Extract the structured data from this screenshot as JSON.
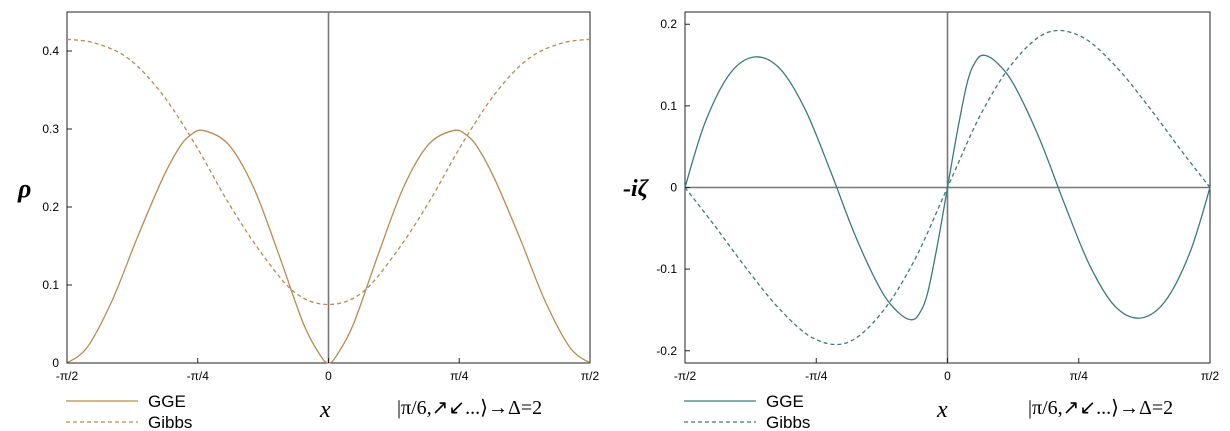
{
  "chart_data": [
    {
      "type": "line",
      "ylabel": "ρ",
      "xlabel": "x",
      "xlim": [
        -1.5708,
        1.5708
      ],
      "ylim": [
        0,
        0.45
      ],
      "color": "#b98a52",
      "x_ticks": [
        {
          "value": -1.5708,
          "label": "-π/2"
        },
        {
          "value": -0.7854,
          "label": "-π/4"
        },
        {
          "value": 0,
          "label": "0"
        },
        {
          "value": 0.7854,
          "label": "π/4"
        },
        {
          "value": 1.5708,
          "label": "π/2"
        }
      ],
      "y_ticks": [
        {
          "value": 0,
          "label": "0"
        },
        {
          "value": 0.1,
          "label": "0.1"
        },
        {
          "value": 0.2,
          "label": "0.2"
        },
        {
          "value": 0.3,
          "label": "0.3"
        },
        {
          "value": 0.4,
          "label": "0.4"
        }
      ],
      "annotation": "|π/6,↗↙...⟩→Δ=2",
      "series": [
        {
          "name": "GGE",
          "style": "solid",
          "x": [
            -1.5708,
            -1.45,
            -1.3,
            -1.15,
            -1.0,
            -0.9,
            -0.83,
            -0.75,
            -0.6,
            -0.45,
            -0.3,
            -0.15,
            -0.05,
            0,
            0.05,
            0.15,
            0.3,
            0.45,
            0.6,
            0.75,
            0.83,
            0.9,
            1.0,
            1.15,
            1.3,
            1.45,
            1.5708
          ],
          "y": [
            0.0,
            0.02,
            0.08,
            0.16,
            0.235,
            0.275,
            0.292,
            0.298,
            0.28,
            0.225,
            0.14,
            0.05,
            0.01,
            0.0,
            0.01,
            0.05,
            0.14,
            0.225,
            0.28,
            0.298,
            0.292,
            0.275,
            0.235,
            0.16,
            0.08,
            0.02,
            0.0
          ]
        },
        {
          "name": "Gibbs",
          "style": "dashed",
          "x": [
            -1.5708,
            -1.4,
            -1.2,
            -1.0,
            -0.8,
            -0.6,
            -0.4,
            -0.2,
            0,
            0.2,
            0.4,
            0.6,
            0.8,
            1.0,
            1.2,
            1.4,
            1.5708
          ],
          "y": [
            0.415,
            0.41,
            0.39,
            0.345,
            0.28,
            0.205,
            0.14,
            0.09,
            0.075,
            0.09,
            0.14,
            0.205,
            0.28,
            0.345,
            0.39,
            0.41,
            0.415
          ]
        }
      ]
    },
    {
      "type": "line",
      "ylabel": "-iζ",
      "xlabel": "x",
      "xlim": [
        -1.5708,
        1.5708
      ],
      "ylim": [
        -0.215,
        0.215
      ],
      "color": "#3c7a78",
      "x_ticks": [
        {
          "value": -1.5708,
          "label": "-π/2"
        },
        {
          "value": -0.7854,
          "label": "-π/4"
        },
        {
          "value": 0,
          "label": "0"
        },
        {
          "value": 0.7854,
          "label": "π/4"
        },
        {
          "value": 1.5708,
          "label": "π/2"
        }
      ],
      "y_ticks": [
        {
          "value": -0.2,
          "label": "-0.2"
        },
        {
          "value": -0.1,
          "label": "-0.1"
        },
        {
          "value": 0,
          "label": "0"
        },
        {
          "value": 0.1,
          "label": "0.1"
        },
        {
          "value": 0.2,
          "label": "0.2"
        }
      ],
      "annotation": "|π/6,↗↙...⟩→Δ=2",
      "series": [
        {
          "name": "GGE",
          "style": "solid",
          "x": [
            -1.5708,
            -1.45,
            -1.3,
            -1.15,
            -1.0,
            -0.85,
            -0.7,
            -0.55,
            -0.4,
            -0.3,
            -0.22,
            -0.17,
            -0.12,
            -0.06,
            0,
            0.06,
            0.12,
            0.17,
            0.22,
            0.3,
            0.4,
            0.55,
            0.7,
            0.85,
            1.0,
            1.15,
            1.3,
            1.45,
            1.5708
          ],
          "y": [
            0.0,
            0.08,
            0.14,
            0.16,
            0.145,
            0.095,
            0.02,
            -0.06,
            -0.125,
            -0.152,
            -0.162,
            -0.155,
            -0.13,
            -0.07,
            0.0,
            0.07,
            0.13,
            0.155,
            0.162,
            0.152,
            0.125,
            0.06,
            -0.02,
            -0.095,
            -0.145,
            -0.16,
            -0.14,
            -0.08,
            0.0
          ]
        },
        {
          "name": "Gibbs",
          "style": "dashed",
          "x": [
            -1.5708,
            -1.4,
            -1.2,
            -1.0,
            -0.8,
            -0.6,
            -0.4,
            -0.2,
            0,
            0.2,
            0.4,
            0.6,
            0.8,
            1.0,
            1.2,
            1.4,
            1.5708
          ],
          "y": [
            0.0,
            -0.045,
            -0.1,
            -0.15,
            -0.185,
            -0.19,
            -0.155,
            -0.09,
            0.0,
            0.09,
            0.155,
            0.19,
            0.185,
            0.15,
            0.1,
            0.045,
            0.0
          ]
        }
      ]
    }
  ]
}
